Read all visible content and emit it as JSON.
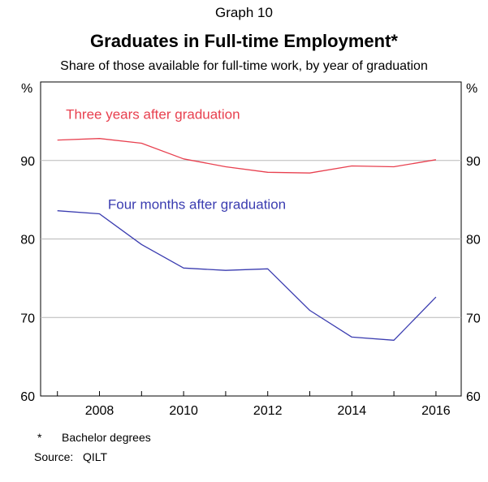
{
  "header": {
    "graph_number": "Graph 10",
    "title": "Graduates in Full-time Employment*",
    "subtitle": "Share of those available for full-time work, by year of graduation"
  },
  "chart_data": {
    "type": "line",
    "title": "Graduates in Full-time Employment*",
    "subtitle": "Share of those available for full-time work, by year of graduation",
    "xlabel": "",
    "ylabel": "%",
    "ylabel_right": "%",
    "xlim": [
      2006.6,
      2016.6
    ],
    "ylim": [
      60,
      100
    ],
    "x_ticks": [
      2008,
      2010,
      2012,
      2014,
      2016
    ],
    "y_ticks": [
      60,
      70,
      80,
      90
    ],
    "grid": true,
    "x": [
      2007,
      2008,
      2009,
      2010,
      2011,
      2012,
      2013,
      2014,
      2015,
      2016
    ],
    "series": [
      {
        "name": "Three years after graduation",
        "color": "#e8404f",
        "values": [
          92.6,
          92.8,
          92.2,
          90.2,
          89.2,
          88.5,
          88.4,
          89.3,
          89.2,
          90.1
        ]
      },
      {
        "name": "Four months after graduation",
        "color": "#3a3cb0",
        "values": [
          83.6,
          83.2,
          79.3,
          76.3,
          76.0,
          76.2,
          70.9,
          67.5,
          67.1,
          72.6
        ]
      }
    ]
  },
  "footnotes": {
    "note_marker": "*",
    "note_text": "Bachelor degrees",
    "source_label": "Source:",
    "source_text": "QILT"
  }
}
